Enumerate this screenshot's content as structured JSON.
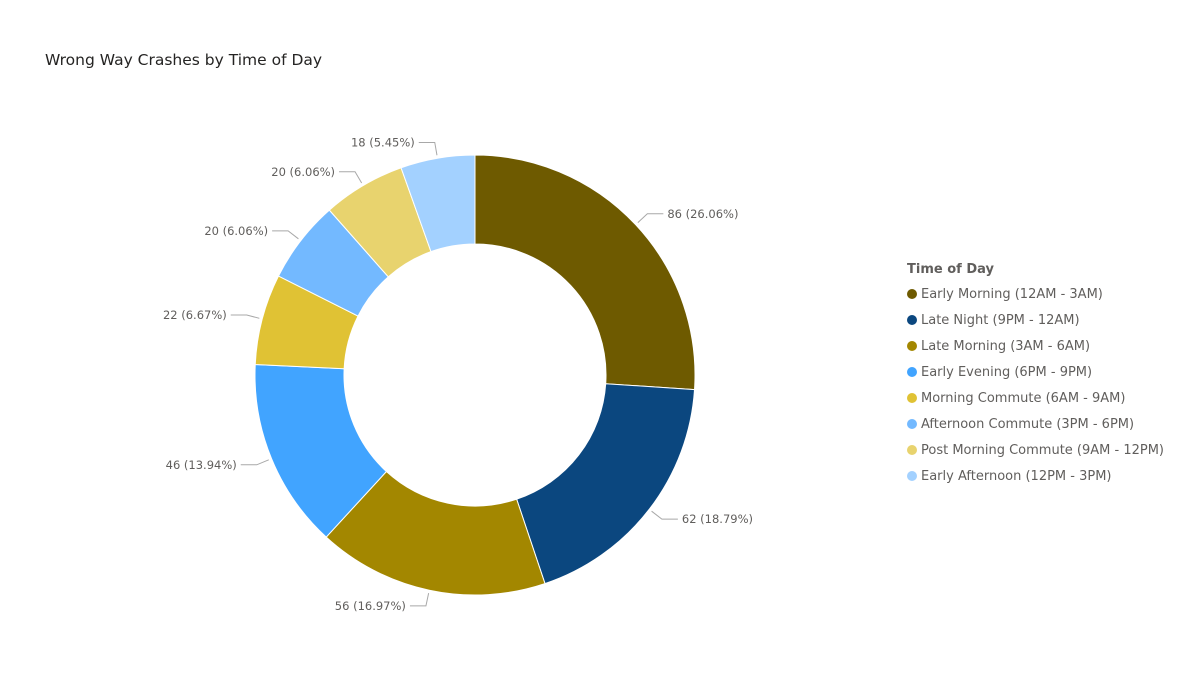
{
  "chart_data": {
    "type": "pie",
    "title": "Wrong Way Crashes by Time of Day",
    "legend_title": "Time of Day",
    "legend_position": "right",
    "donut": true,
    "slices": [
      {
        "label": "Early Morning (12AM - 3AM)",
        "value": 86,
        "percent": "26.06%",
        "data_label": "86 (26.06%)",
        "color": "#6e5a00"
      },
      {
        "label": "Late Night (9PM - 12AM)",
        "value": 62,
        "percent": "18.79%",
        "data_label": "62 (18.79%)",
        "color": "#0b477f"
      },
      {
        "label": "Late Morning (3AM - 6AM)",
        "value": 56,
        "percent": "16.97%",
        "data_label": "56 (16.97%)",
        "color": "#a38700"
      },
      {
        "label": "Early Evening (6PM - 9PM)",
        "value": 46,
        "percent": "13.94%",
        "data_label": "46 (13.94%)",
        "color": "#41a4ff"
      },
      {
        "label": "Morning Commute (6AM - 9AM)",
        "value": 22,
        "percent": "6.67%",
        "data_label": "22 (6.67%)",
        "color": "#e0c234"
      },
      {
        "label": "Afternoon Commute (3PM - 6PM)",
        "value": 20,
        "percent": "6.06%",
        "data_label": "20 (6.06%)",
        "color": "#73b9ff"
      },
      {
        "label": "Post Morning Commute (9AM - 12PM)",
        "value": 20,
        "percent": "6.06%",
        "data_label": "20 (6.06%)",
        "color": "#e8d36e"
      },
      {
        "label": "Early Afternoon (12PM - 3PM)",
        "value": 18,
        "percent": "5.45%",
        "data_label": "18 (5.45%)",
        "color": "#a3d1ff"
      }
    ]
  }
}
